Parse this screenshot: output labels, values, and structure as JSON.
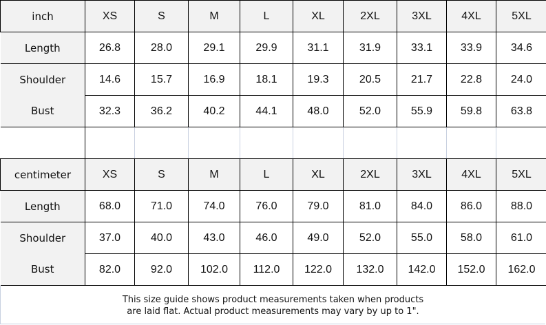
{
  "sizes": [
    "XS",
    "S",
    "M",
    "L",
    "XL",
    "2XL",
    "3XL",
    "4XL",
    "5XL"
  ],
  "inch": {
    "unit": "inch",
    "rows": [
      {
        "label": "Length",
        "values": [
          "26.8",
          "28.0",
          "29.1",
          "29.9",
          "31.1",
          "31.9",
          "33.1",
          "33.9",
          "34.6"
        ]
      },
      {
        "label": "Shoulder",
        "values": [
          "14.6",
          "15.7",
          "16.9",
          "18.1",
          "19.3",
          "20.5",
          "21.7",
          "22.8",
          "24.0"
        ]
      },
      {
        "label": "Bust",
        "values": [
          "32.3",
          "36.2",
          "40.2",
          "44.1",
          "48.0",
          "52.0",
          "55.9",
          "59.8",
          "63.8"
        ]
      }
    ]
  },
  "cm": {
    "unit": "centimeter",
    "rows": [
      {
        "label": "Length",
        "values": [
          "68.0",
          "71.0",
          "74.0",
          "76.0",
          "79.0",
          "81.0",
          "84.0",
          "86.0",
          "88.0"
        ]
      },
      {
        "label": "Shoulder",
        "values": [
          "37.0",
          "40.0",
          "43.0",
          "46.0",
          "49.0",
          "52.0",
          "55.0",
          "58.0",
          "61.0"
        ]
      },
      {
        "label": "Bust",
        "values": [
          "82.0",
          "92.0",
          "102.0",
          "112.0",
          "122.0",
          "132.0",
          "142.0",
          "152.0",
          "162.0"
        ]
      }
    ]
  },
  "note": {
    "line1": "This size guide shows product measurements taken when products",
    "line2": "are laid flat. Actual product measurements may vary by up to 1\"."
  },
  "colors": {
    "label_bg": "#f2f2f2",
    "border": "#000000",
    "faint_border": "#c8d0e0"
  }
}
